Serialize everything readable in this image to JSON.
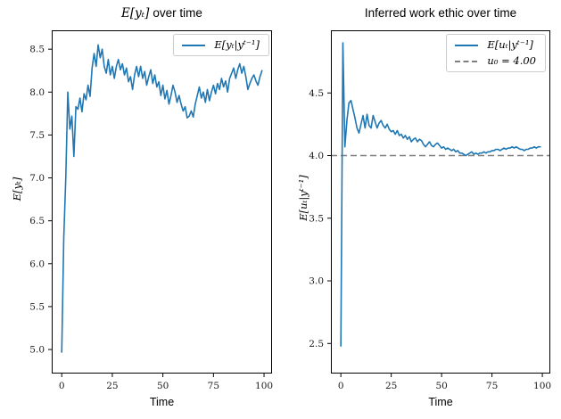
{
  "figure": {
    "background": "#ffffff",
    "accent_blue": "#1f77b4",
    "reference_gray": "#7f7f7f"
  },
  "chart_data": [
    {
      "type": "line",
      "title_math": "E[yₜ]",
      "title_rest": "over time",
      "xlabel": "Time",
      "ylabel": "E[yₜ]",
      "xlim": [
        -4.95,
        103.95
      ],
      "ylim": [
        4.72,
        8.72
      ],
      "xticks": [
        0,
        25,
        50,
        75,
        100
      ],
      "xtick_labels": [
        "0",
        "25",
        "50",
        "75",
        "100"
      ],
      "yticks": [
        5.0,
        5.5,
        6.0,
        6.5,
        7.0,
        7.5,
        8.0,
        8.5
      ],
      "ytick_labels": [
        "5.0",
        "5.5",
        "6.0",
        "6.5",
        "7.0",
        "7.5",
        "8.0",
        "8.5"
      ],
      "grid": false,
      "legend_position": "upper right",
      "legend": [
        {
          "label": "E[yₜ|yᵗ⁻¹]",
          "color": "#1f77b4",
          "style": "solid"
        }
      ],
      "series": [
        {
          "name": "E[yₜ|yᵗ⁻¹]",
          "color": "#1f77b4",
          "x_start": 0,
          "x_step": 1,
          "values": [
            4.97,
            6.3,
            7.0,
            8.0,
            7.57,
            7.72,
            7.25,
            7.83,
            7.8,
            7.93,
            7.77,
            7.98,
            7.91,
            8.08,
            7.95,
            8.28,
            8.45,
            8.3,
            8.55,
            8.4,
            8.5,
            8.3,
            8.22,
            8.38,
            8.2,
            8.3,
            8.16,
            8.3,
            8.38,
            8.26,
            8.33,
            8.2,
            8.28,
            8.12,
            8.18,
            8.03,
            8.2,
            8.3,
            8.18,
            8.3,
            8.16,
            8.24,
            8.08,
            8.18,
            8.26,
            8.1,
            8.2,
            8.06,
            8.12,
            7.96,
            8.08,
            7.92,
            8.02,
            7.86,
            7.96,
            8.08,
            8.0,
            7.88,
            7.96,
            7.86,
            7.78,
            7.83,
            7.7,
            7.72,
            7.78,
            7.71,
            7.86,
            7.96,
            8.06,
            7.93,
            8.0,
            7.88,
            8.03,
            7.9,
            8.0,
            8.08,
            7.98,
            8.1,
            8.03,
            8.16,
            8.06,
            8.13,
            8.0,
            8.16,
            8.22,
            8.28,
            8.16,
            8.26,
            8.33,
            8.22,
            8.3,
            8.18,
            8.03,
            8.1,
            8.16,
            8.2,
            8.13,
            8.08,
            8.18,
            8.25
          ]
        }
      ]
    },
    {
      "type": "line",
      "title": "Inferred work ethic over time",
      "xlabel": "Time",
      "ylabel": "E[uₜ|yᵗ⁻¹]",
      "xlim": [
        -4.95,
        103.95
      ],
      "ylim": [
        2.26,
        5.0
      ],
      "xticks": [
        0,
        25,
        50,
        75,
        100
      ],
      "xtick_labels": [
        "0",
        "25",
        "50",
        "75",
        "100"
      ],
      "yticks": [
        2.5,
        3.0,
        3.5,
        4.0,
        4.5
      ],
      "ytick_labels": [
        "2.5",
        "3.0",
        "3.5",
        "4.0",
        "4.5"
      ],
      "grid": false,
      "legend_position": "upper right",
      "legend": [
        {
          "label": "E[uₜ|yᵗ⁻¹]",
          "color": "#1f77b4",
          "style": "solid"
        },
        {
          "label": "u₀ = 4.00",
          "color": "#7f7f7f",
          "style": "dashed"
        }
      ],
      "hline": {
        "value": 4.0,
        "label": "u₀ = 4.00",
        "color": "#7f7f7f",
        "style": "dashed"
      },
      "series": [
        {
          "name": "E[uₜ|yᵗ⁻¹]",
          "color": "#1f77b4",
          "x_start": 0,
          "x_step": 1,
          "values": [
            2.48,
            4.9,
            4.07,
            4.28,
            4.42,
            4.44,
            4.37,
            4.3,
            4.22,
            4.18,
            4.25,
            4.32,
            4.22,
            4.33,
            4.24,
            4.22,
            4.32,
            4.27,
            4.22,
            4.26,
            4.28,
            4.24,
            4.22,
            4.25,
            4.21,
            4.19,
            4.2,
            4.17,
            4.2,
            4.16,
            4.17,
            4.14,
            4.16,
            4.13,
            4.15,
            4.11,
            4.13,
            4.14,
            4.11,
            4.13,
            4.12,
            4.09,
            4.07,
            4.09,
            4.11,
            4.08,
            4.07,
            4.09,
            4.1,
            4.08,
            4.06,
            4.07,
            4.05,
            4.06,
            4.05,
            4.04,
            4.05,
            4.03,
            4.04,
            4.02,
            4.02,
            4.01,
            4.0,
            4.01,
            4.02,
            4.03,
            4.01,
            4.02,
            4.01,
            4.02,
            4.02,
            4.03,
            4.02,
            4.03,
            4.03,
            4.04,
            4.04,
            4.05,
            4.05,
            4.04,
            4.05,
            4.06,
            4.05,
            4.06,
            4.06,
            4.07,
            4.06,
            4.07,
            4.06,
            4.05,
            4.05,
            4.04,
            4.05,
            4.05,
            4.06,
            4.06,
            4.07,
            4.06,
            4.07,
            4.07
          ]
        }
      ]
    }
  ]
}
